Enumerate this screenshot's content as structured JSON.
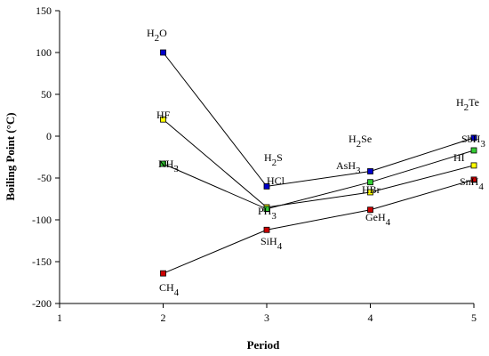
{
  "chart_data": {
    "type": "line",
    "title": "",
    "xlabel": "Period",
    "ylabel": "Boiling Point (°C)",
    "xlim": [
      1,
      5
    ],
    "ylim": [
      -200,
      150
    ],
    "xticks": [
      "1",
      "2",
      "3",
      "4",
      "5"
    ],
    "yticks": [
      "-200",
      "-150",
      "-100",
      "-50",
      "0",
      "50",
      "100",
      "150"
    ],
    "grid": false,
    "legend": "none",
    "series": [
      {
        "color": "#0000cc",
        "x": [
          2,
          3,
          4,
          5
        ],
        "y": [
          100,
          -60,
          -42,
          -2
        ],
        "labels": [
          "H2O",
          "H2S",
          "H2Se",
          "H2Te"
        ]
      },
      {
        "color": "#ffff00",
        "x": [
          2,
          3,
          4,
          5
        ],
        "y": [
          20,
          -85,
          -67,
          -35
        ],
        "labels": [
          "HF",
          "HCl",
          "HBr",
          "HI"
        ]
      },
      {
        "color": "#33cc33",
        "x": [
          2,
          3,
          4,
          5
        ],
        "y": [
          -33,
          -87,
          -55,
          -17
        ],
        "labels": [
          "NH3",
          "PH3",
          "AsH3",
          "SbH3"
        ]
      },
      {
        "color": "#cc0000",
        "x": [
          2,
          3,
          4,
          5
        ],
        "y": [
          -164,
          -112,
          -88,
          -52
        ],
        "labels": [
          "CH4",
          "SiH4",
          "GeH4",
          "SnH4"
        ]
      }
    ]
  },
  "point_labels": {
    "h2o": {
      "base": "H",
      "sub": "2",
      "tail": "O"
    },
    "hf": {
      "base": "HF",
      "sub": "",
      "tail": ""
    },
    "nh3": {
      "base": "NH",
      "sub": "3",
      "tail": ""
    },
    "ch4": {
      "base": "CH",
      "sub": "4",
      "tail": ""
    },
    "h2s": {
      "base": "H",
      "sub": "2",
      "tail": "S"
    },
    "hcl": {
      "base": "HCl",
      "sub": "",
      "tail": ""
    },
    "ph3": {
      "base": "PH",
      "sub": "3",
      "tail": ""
    },
    "sih4": {
      "base": "SiH",
      "sub": "4",
      "tail": ""
    },
    "h2se": {
      "base": "H",
      "sub": "2",
      "tail": "Se"
    },
    "ash3": {
      "base": "AsH",
      "sub": "3",
      "tail": ""
    },
    "hbr": {
      "base": "HBr",
      "sub": "",
      "tail": ""
    },
    "geh4": {
      "base": "GeH",
      "sub": "4",
      "tail": ""
    },
    "h2te": {
      "base": "H",
      "sub": "2",
      "tail": "Te"
    },
    "sbh3": {
      "base": "SbH",
      "sub": "3",
      "tail": ""
    },
    "hi": {
      "base": "HI",
      "sub": "",
      "tail": ""
    },
    "snh4": {
      "base": "SnH",
      "sub": "4",
      "tail": ""
    }
  }
}
